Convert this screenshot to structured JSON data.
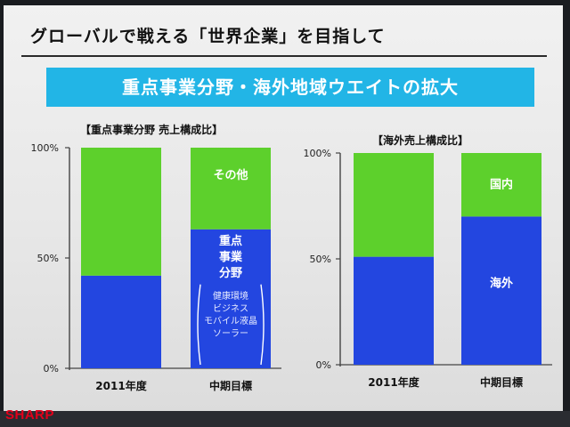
{
  "slide": {
    "title": "グローバルで戦える「世界企業」を目指して",
    "banner": "重点事業分野・海外地域ウエイトの拡大",
    "logo": "SHARP"
  },
  "colors": {
    "green": "#5dd02c",
    "blue": "#2346e0",
    "banner": "#22b5e6",
    "logo": "#e3001b"
  },
  "chart_data": [
    {
      "type": "bar",
      "stacked": true,
      "title": "【重点事業分野 売上構成比】",
      "categories": [
        "2011年度",
        "中期目標"
      ],
      "y_ticks": [
        "0%",
        "50%",
        "100%"
      ],
      "ylim": [
        0,
        100
      ],
      "series": [
        {
          "name": "重点事業分野",
          "values": [
            42,
            63
          ]
        },
        {
          "name": "その他",
          "values": [
            58,
            37
          ]
        }
      ],
      "annotations": {
        "top_label": "その他",
        "bottom_label_lines": [
          "重点",
          "事業",
          "分野"
        ],
        "sub_items": [
          "健康環境",
          "ビジネス",
          "モバイル液晶",
          "ソーラー"
        ]
      }
    },
    {
      "type": "bar",
      "stacked": true,
      "title": "【海外売上構成比】",
      "categories": [
        "2011年度",
        "中期目標"
      ],
      "y_ticks": [
        "0%",
        "50%",
        "100%"
      ],
      "ylim": [
        0,
        100
      ],
      "series": [
        {
          "name": "海外",
          "values": [
            51,
            70
          ]
        },
        {
          "name": "国内",
          "values": [
            49,
            30
          ]
        }
      ],
      "annotations": {
        "top_label": "国内",
        "bottom_label": "海外"
      }
    }
  ]
}
